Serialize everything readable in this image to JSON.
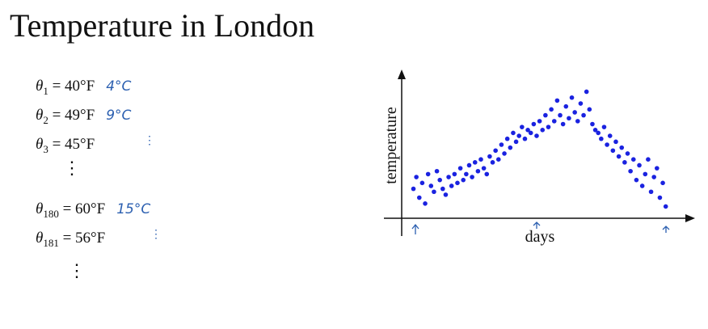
{
  "title": "Temperature in London",
  "equations": [
    {
      "symbol": "θ",
      "sub": "1",
      "rhs": "= 40°F",
      "note": "4°C"
    },
    {
      "symbol": "θ",
      "sub": "2",
      "rhs": "= 49°F",
      "note": "9°C"
    },
    {
      "symbol": "θ",
      "sub": "3",
      "rhs": "= 45°F"
    },
    {
      "symbol": "θ",
      "sub": "180",
      "rhs": "= 60°F",
      "note": "15°C"
    },
    {
      "symbol": "θ",
      "sub": "181",
      "rhs": "= 56°F"
    }
  ],
  "chart_data": {
    "type": "scatter",
    "x_label": "days",
    "y_label": "temperature",
    "color": "#1a22e0",
    "xlim": [
      0,
      100
    ],
    "ylim": [
      0,
      100
    ],
    "x": [
      4,
      5,
      6,
      7,
      8,
      9,
      10,
      11,
      12,
      13,
      14,
      15,
      16,
      17,
      18,
      19,
      20,
      21,
      22,
      23,
      24,
      25,
      26,
      27,
      28,
      29,
      30,
      31,
      32,
      33,
      34,
      35,
      36,
      37,
      38,
      39,
      40,
      41,
      42,
      43,
      44,
      45,
      46,
      47,
      48,
      49,
      50,
      51,
      52,
      53,
      54,
      55,
      56,
      57,
      58,
      59,
      60,
      61,
      62,
      63,
      64,
      65,
      66,
      67,
      68,
      69,
      70,
      71,
      72,
      73,
      74,
      75,
      76,
      77,
      78,
      79,
      80,
      81,
      82,
      83,
      84,
      85,
      86,
      87,
      88,
      89,
      90
    ],
    "y": [
      20,
      28,
      14,
      24,
      10,
      30,
      22,
      18,
      32,
      26,
      20,
      16,
      28,
      22,
      30,
      24,
      34,
      26,
      30,
      36,
      28,
      38,
      32,
      40,
      34,
      30,
      42,
      38,
      46,
      40,
      50,
      44,
      54,
      48,
      58,
      52,
      56,
      62,
      54,
      60,
      58,
      64,
      56,
      66,
      60,
      70,
      62,
      74,
      66,
      80,
      70,
      64,
      76,
      68,
      82,
      72,
      66,
      78,
      70,
      86,
      74,
      64,
      60,
      58,
      54,
      62,
      50,
      56,
      46,
      52,
      42,
      48,
      38,
      44,
      32,
      40,
      26,
      36,
      22,
      30,
      40,
      18,
      28,
      34,
      14,
      24,
      8
    ]
  }
}
